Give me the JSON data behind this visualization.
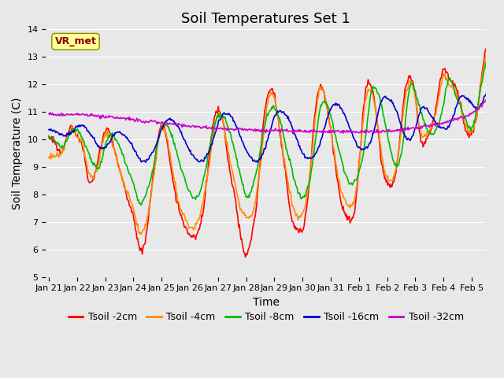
{
  "title": "Soil Temperatures Set 1",
  "xlabel": "Time",
  "ylabel": "Soil Temperature (C)",
  "ylim": [
    5.0,
    14.0
  ],
  "yticks": [
    5.0,
    6.0,
    7.0,
    8.0,
    9.0,
    10.0,
    11.0,
    12.0,
    13.0,
    14.0
  ],
  "annotation": "VR_met",
  "annotation_color": "#8B0000",
  "annotation_bg": "#FFFF99",
  "bg_color": "#E8E8E8",
  "series": [
    {
      "label": "Tsoil -2cm",
      "color": "#FF0000"
    },
    {
      "label": "Tsoil -4cm",
      "color": "#FF8C00"
    },
    {
      "label": "Tsoil -8cm",
      "color": "#00BB00"
    },
    {
      "label": "Tsoil -16cm",
      "color": "#0000CC"
    },
    {
      "label": "Tsoil -32cm",
      "color": "#CC00CC"
    }
  ],
  "xtick_labels": [
    "Jan 21",
    "Jan 22",
    "Jan 23",
    "Jan 24",
    "Jan 25",
    "Jan 26",
    "Jan 27",
    "Jan 28",
    "Jan 29",
    "Jan 30",
    "Jan 31",
    "Feb 1",
    "Feb 2",
    "Feb 3",
    "Feb 4",
    "Feb 5"
  ],
  "xtick_positions": [
    0,
    1,
    2,
    3,
    4,
    5,
    6,
    7,
    8,
    9,
    10,
    11,
    12,
    13,
    14,
    15
  ],
  "legend_fontsize": 9,
  "title_fontsize": 13,
  "axis_label_fontsize": 10,
  "tick_fontsize": 8,
  "line_width": 1.2,
  "figsize": [
    6.4,
    4.8
  ],
  "dpi": 100
}
